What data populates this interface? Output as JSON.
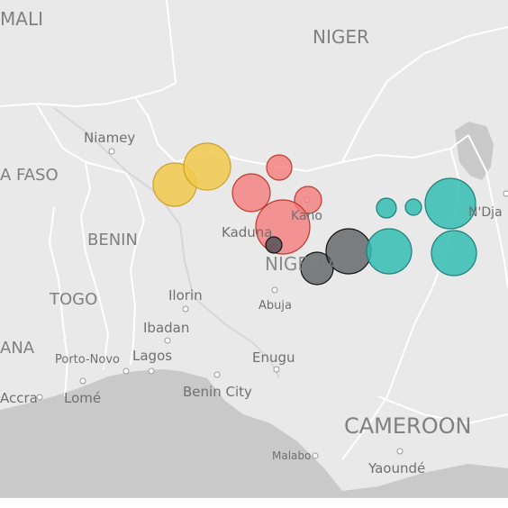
{
  "map": {
    "country_labels": {
      "mali": "MALI",
      "niger": "NIGER",
      "burkina_faso": "A FASO",
      "benin": "BENIN",
      "togo": "TOGO",
      "ghana": "ANA",
      "nigeria": "NIGERIA",
      "cameroon": "CAMEROON"
    },
    "city_labels": {
      "niamey": "Niamey",
      "kaduna": "Kaduna",
      "kano": "Kano",
      "ndjamena": "N'Dja",
      "abuja": "Abuja",
      "ilorin": "Ilorin",
      "ibadan": "Ibadan",
      "porto_novo": "Porto-Novo",
      "lagos": "Lagos",
      "enugu": "Enugu",
      "benin_city": "Benin City",
      "accra": "Accra",
      "lome": "Lomé",
      "malabo": "Malabo",
      "yaounde": "Yaoundé"
    },
    "colors": {
      "land": "#e9e9e9",
      "border": "#ffffff",
      "water": "#c9c9c9",
      "bubble_yellow": "#f2c94c",
      "bubble_red": "#f47c7c",
      "bubble_dark": "#4a4f52",
      "bubble_teal": "#33bdb3"
    }
  }
}
